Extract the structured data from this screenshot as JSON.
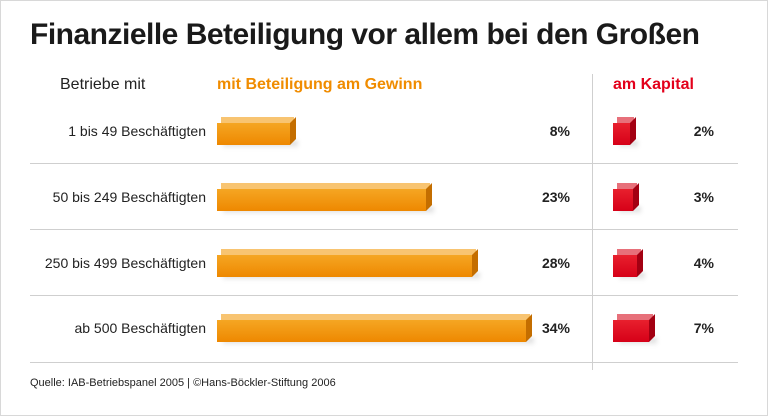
{
  "title": "Finanzielle Beteiligung vor allem bei den Großen",
  "header": {
    "category_label": "Betriebe mit",
    "profit_label": "mit Beteiligung am Gewinn",
    "capital_label": "am Kapital"
  },
  "colors": {
    "profit": "#f08c00",
    "capital": "#e3001b"
  },
  "footer": "Quelle: IAB-Betriebspanel 2005 | ©Hans-Böckler-Stiftung 2006",
  "chart_data": {
    "type": "bar",
    "categories": [
      "1 bis 49 Beschäftigten",
      "50 bis 249 Beschäftigten",
      "250 bis 499 Beschäftigten",
      "ab 500 Beschäftigten"
    ],
    "series": [
      {
        "name": "mit Beteiligung am Gewinn",
        "values": [
          8,
          23,
          28,
          34
        ],
        "labels": [
          "8%",
          "23%",
          "28%",
          "34%"
        ]
      },
      {
        "name": "am Kapital",
        "values": [
          2,
          3,
          4,
          7
        ],
        "labels": [
          "2%",
          "3%",
          "4%",
          "7%"
        ]
      }
    ],
    "unit": "%"
  }
}
